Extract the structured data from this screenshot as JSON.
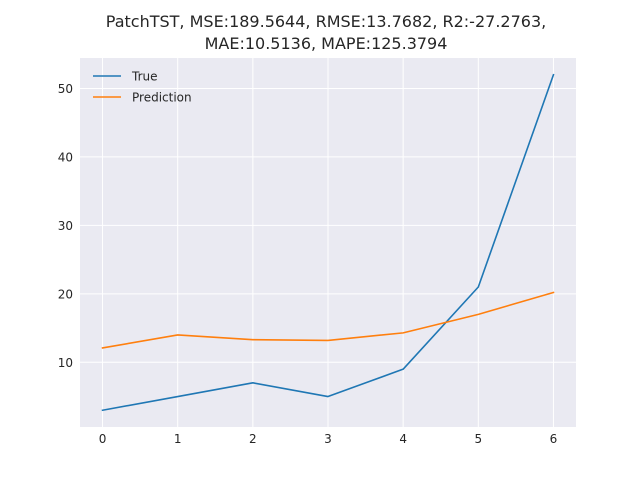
{
  "chart_data": {
    "type": "line",
    "title_lines": [
      "PatchTST, MSE:189.5644, RMSE:13.7682, R2:-27.2763,",
      "MAE:10.5136, MAPE:125.3794"
    ],
    "xlabel": "",
    "ylabel": "",
    "x": [
      0,
      1,
      2,
      3,
      4,
      5,
      6
    ],
    "xlim": [
      -0.3,
      6.3
    ],
    "ylim": [
      0.55,
      54.45
    ],
    "x_ticks": [
      "0",
      "1",
      "2",
      "3",
      "4",
      "5",
      "6"
    ],
    "y_ticks": [
      "10",
      "20",
      "30",
      "40",
      "50"
    ],
    "y_tick_values": [
      10,
      20,
      30,
      40,
      50
    ],
    "grid": true,
    "legend_position": "upper-left",
    "background": "#eaeaf2",
    "series": [
      {
        "name": "True",
        "color": "#1f77b4",
        "values": [
          3,
          5,
          7,
          5,
          9,
          21,
          52
        ]
      },
      {
        "name": "Prediction",
        "color": "#ff7f0e",
        "values": [
          12.1,
          14.0,
          13.3,
          13.2,
          14.3,
          17.0,
          20.2
        ]
      }
    ]
  }
}
